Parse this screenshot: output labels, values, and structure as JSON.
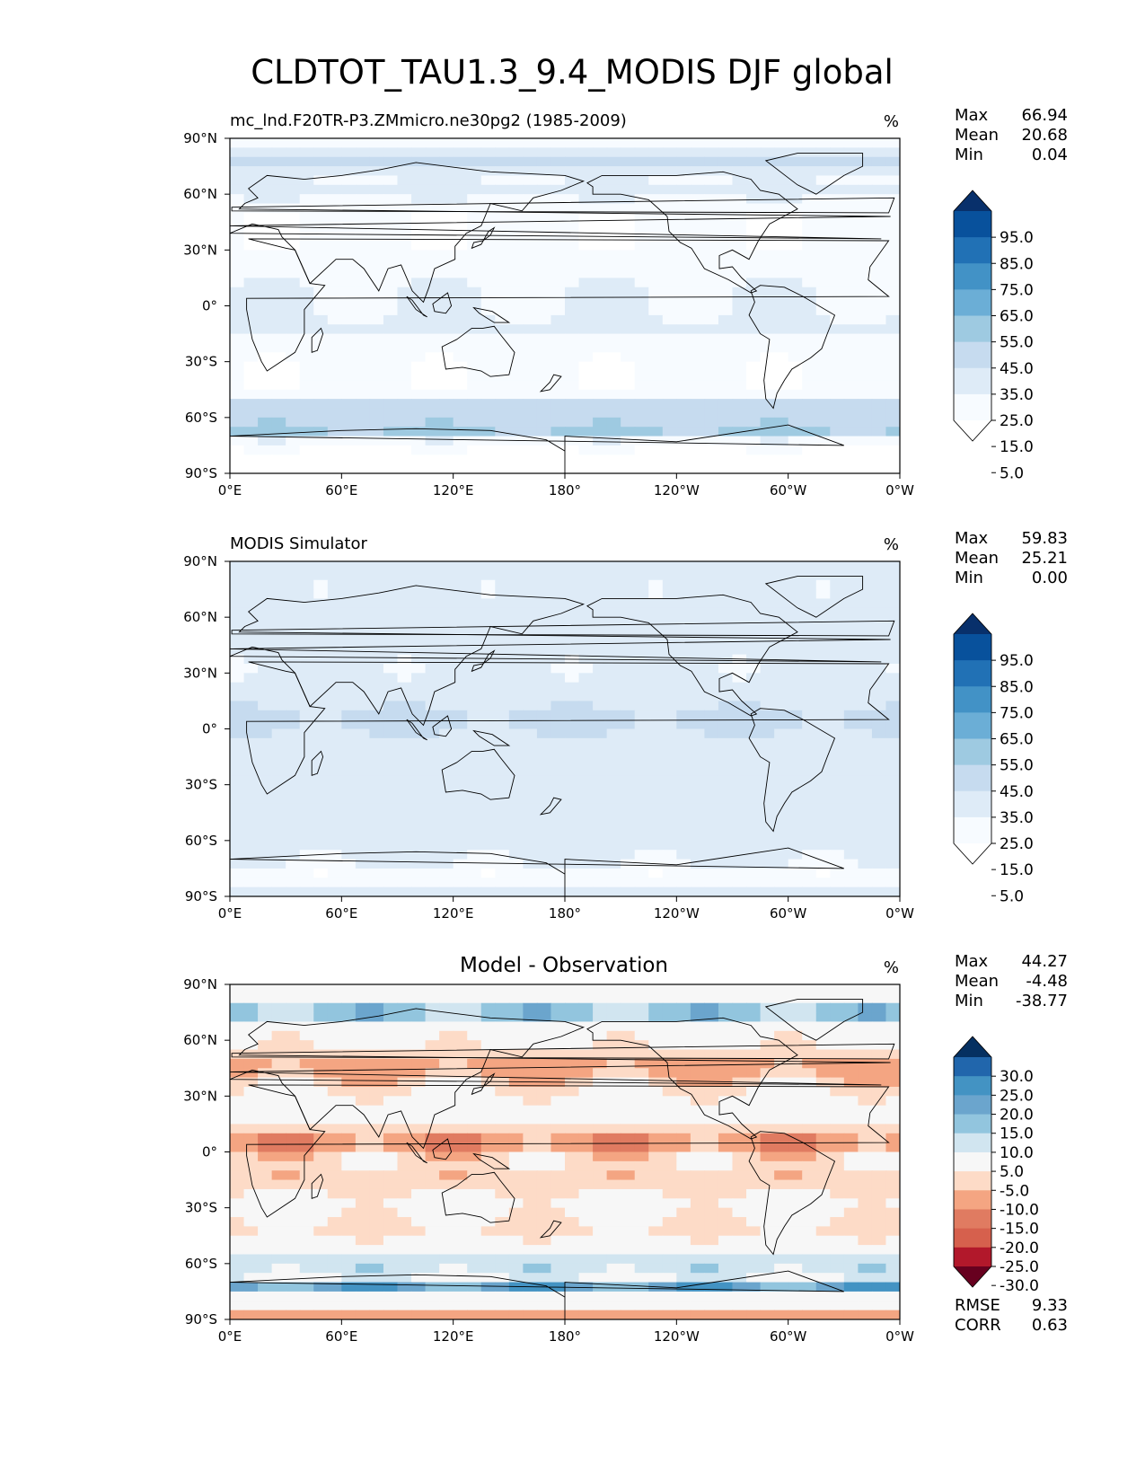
{
  "figure_title": "CLDTOT_TAU1.3_9.4_MODIS DJF global",
  "chart_data": [
    {
      "type": "heatmap",
      "title_left": "mc_lnd.F20TR-P3.ZMmicro.ne30pg2 (1985-2009)",
      "title_center": "",
      "units": "%",
      "stats": [
        {
          "label": "Max",
          "value": "66.94"
        },
        {
          "label": "Mean",
          "value": "20.68"
        },
        {
          "label": "Min",
          "value": "0.04"
        }
      ],
      "colorbar": {
        "labels": [
          "95.0",
          "85.0",
          "75.0",
          "65.0",
          "55.0",
          "45.0",
          "35.0",
          "25.0",
          "15.0",
          "5.0"
        ],
        "colors": [
          "#08306b",
          "#08519c",
          "#2171b5",
          "#4292c6",
          "#6baed6",
          "#9ecae1",
          "#c6dbef",
          "#deebf7",
          "#f7fbff",
          "#ffffff"
        ],
        "extend": "both"
      },
      "field": {
        "base": 16,
        "bands": [
          {
            "lat": 78,
            "value": 42,
            "w": 7
          },
          {
            "lat": 62,
            "value": 30,
            "w": 6
          },
          {
            "lat": 10,
            "value": 24,
            "w": 15
          },
          {
            "lat": -12,
            "value": 26,
            "w": 12
          },
          {
            "lat": -55,
            "value": 44,
            "w": 6
          },
          {
            "lat": -66,
            "value": 50,
            "w": 5
          },
          {
            "lat": -85,
            "value": 3,
            "w": 6
          }
        ]
      },
      "xticks": [
        "0°E",
        "60°E",
        "120°E",
        "180°",
        "120°W",
        "60°W",
        "0°W"
      ],
      "yticks": [
        "90°N",
        "60°N",
        "30°N",
        "0°",
        "30°S",
        "60°S",
        "90°S"
      ]
    },
    {
      "type": "heatmap",
      "title_left": "MODIS Simulator",
      "title_center": "",
      "units": "%",
      "stats": [
        {
          "label": "Max",
          "value": "59.83"
        },
        {
          "label": "Mean",
          "value": "25.21"
        },
        {
          "label": "Min",
          "value": "0.00"
        }
      ],
      "colorbar": {
        "labels": [
          "95.0",
          "85.0",
          "75.0",
          "65.0",
          "55.0",
          "45.0",
          "35.0",
          "25.0",
          "15.0",
          "5.0"
        ],
        "colors": [
          "#08306b",
          "#08519c",
          "#2171b5",
          "#4292c6",
          "#6baed6",
          "#9ecae1",
          "#c6dbef",
          "#deebf7",
          "#f7fbff",
          "#ffffff"
        ],
        "extend": "both"
      },
      "field": {
        "base": 28,
        "bands": [
          {
            "lat": 55,
            "value": 32,
            "w": 12
          },
          {
            "lat": 5,
            "value": 38,
            "w": 10
          },
          {
            "lat": -30,
            "value": 30,
            "w": 10
          },
          {
            "lat": -55,
            "value": 30,
            "w": 8
          },
          {
            "lat": -80,
            "value": 16,
            "w": 6
          }
        ]
      },
      "xticks": [
        "0°E",
        "60°E",
        "120°E",
        "180°",
        "120°W",
        "60°W",
        "0°W"
      ],
      "yticks": [
        "90°N",
        "60°N",
        "30°N",
        "0°",
        "30°S",
        "60°S",
        "90°S"
      ]
    },
    {
      "type": "heatmap",
      "title_left": "",
      "title_center": "Model - Observation",
      "units": "%",
      "stats": [
        {
          "label": "Max",
          "value": "44.27"
        },
        {
          "label": "Mean",
          "value": "-4.48"
        },
        {
          "label": "Min",
          "value": "-38.77"
        }
      ],
      "colorbar": {
        "labels": [
          "30.0",
          "25.0",
          "20.0",
          "15.0",
          "10.0",
          "5.0",
          "-5.0",
          "-10.0",
          "-15.0",
          "-20.0",
          "-25.0",
          "-30.0"
        ],
        "colors": [
          "#053061",
          "#2166ac",
          "#4393c3",
          "#6ba5cd",
          "#92c5de",
          "#d1e5f0",
          "#f7f7f7",
          "#fddbc7",
          "#f4a582",
          "#e07b61",
          "#d6604d",
          "#b2182b",
          "#67001f"
        ],
        "extend": "both"
      },
      "field": {
        "base": -2,
        "bands": [
          {
            "lat": 75,
            "value": 16,
            "w": 5
          },
          {
            "lat": 45,
            "value": -12,
            "w": 10
          },
          {
            "lat": 5,
            "value": -14,
            "w": 8
          },
          {
            "lat": -15,
            "value": -9,
            "w": 8
          },
          {
            "lat": -42,
            "value": -6,
            "w": 6
          },
          {
            "lat": -60,
            "value": 12,
            "w": 4
          },
          {
            "lat": -72,
            "value": 18,
            "w": 4
          },
          {
            "lat": -88,
            "value": -12,
            "w": 2
          }
        ]
      },
      "xticks": [
        "0°E",
        "60°E",
        "120°E",
        "180°",
        "120°W",
        "60°W",
        "0°W"
      ],
      "yticks": [
        "90°N",
        "60°N",
        "30°N",
        "0°",
        "30°S",
        "60°S",
        "90°S"
      ],
      "metrics": [
        {
          "label": "RMSE",
          "value": "9.33"
        },
        {
          "label": "CORR",
          "value": "0.63"
        }
      ]
    }
  ]
}
